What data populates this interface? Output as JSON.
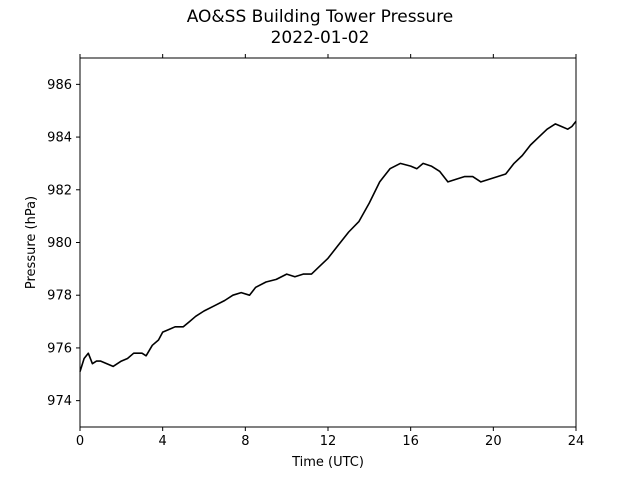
{
  "chart_data": {
    "type": "line",
    "title": "AO&SS Building Tower Pressure",
    "subtitle": "2022-01-02",
    "xlabel": "Time (UTC)",
    "ylabel": "Pressure (hPa)",
    "xlim": [
      0,
      24
    ],
    "ylim": [
      973,
      987
    ],
    "xticks": [
      0,
      4,
      8,
      12,
      16,
      20,
      24
    ],
    "yticks": [
      974,
      976,
      978,
      980,
      982,
      984,
      986
    ],
    "grid": false,
    "line_color": "#000000",
    "series": [
      {
        "x": [
          0.0,
          0.2,
          0.4,
          0.6,
          0.8,
          1.0,
          1.3,
          1.6,
          2.0,
          2.3,
          2.6,
          3.0,
          3.2,
          3.5,
          3.8,
          4.0,
          4.3,
          4.6,
          5.0,
          5.3,
          5.6,
          6.0,
          6.5,
          7.0,
          7.4,
          7.8,
          8.2,
          8.5,
          9.0,
          9.5,
          10.0,
          10.4,
          10.8,
          11.2,
          11.6,
          12.0,
          12.5,
          13.0,
          13.5,
          14.0,
          14.5,
          15.0,
          15.5,
          16.0,
          16.3,
          16.6,
          17.0,
          17.4,
          17.8,
          18.2,
          18.6,
          19.0,
          19.4,
          19.8,
          20.2,
          20.6,
          21.0,
          21.4,
          21.8,
          22.2,
          22.6,
          23.0,
          23.3,
          23.6,
          23.8,
          24.0
        ],
        "y": [
          975.1,
          975.6,
          975.8,
          975.4,
          975.5,
          975.5,
          975.4,
          975.3,
          975.5,
          975.6,
          975.8,
          975.8,
          975.7,
          976.1,
          976.3,
          976.6,
          976.7,
          976.8,
          976.8,
          977.0,
          977.2,
          977.4,
          977.6,
          977.8,
          978.0,
          978.1,
          978.0,
          978.3,
          978.5,
          978.6,
          978.8,
          978.7,
          978.8,
          978.8,
          979.1,
          979.4,
          979.9,
          980.4,
          980.8,
          981.5,
          982.3,
          982.8,
          983.0,
          982.9,
          982.8,
          983.0,
          982.9,
          982.7,
          982.3,
          982.4,
          982.5,
          982.5,
          982.3,
          982.4,
          982.5,
          982.6,
          983.0,
          983.3,
          983.7,
          984.0,
          984.3,
          984.5,
          984.4,
          984.3,
          984.4,
          984.6
        ]
      }
    ]
  }
}
